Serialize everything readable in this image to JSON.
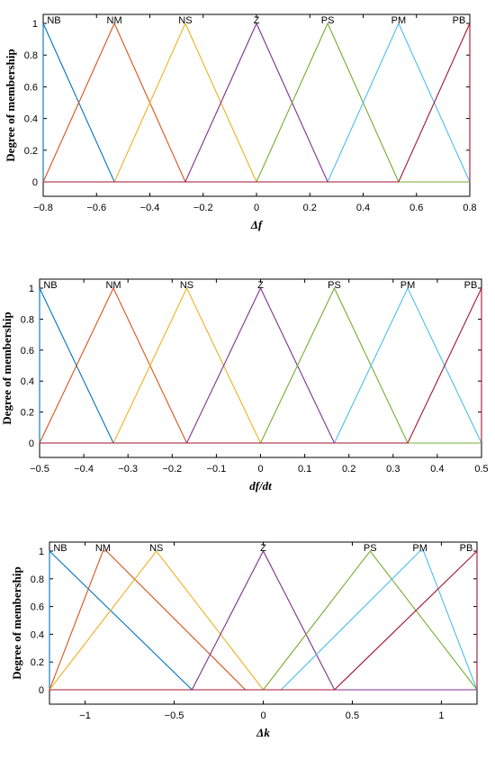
{
  "chart_data": [
    {
      "type": "line",
      "xlabel": "Δf",
      "ylabel": "Degree of membership",
      "xlim": [
        -0.8,
        0.8
      ],
      "ylim": [
        0,
        1
      ],
      "xticks": [
        -0.8,
        -0.6,
        -0.4,
        -0.2,
        0,
        0.2,
        0.4,
        0.6,
        0.8
      ],
      "xtick_labels": [
        "−0.8",
        "−0.6",
        "−0.4",
        "−0.2",
        "0",
        "0.2",
        "0.4",
        "0.6",
        "0.8"
      ],
      "yticks": [
        0,
        0.2,
        0.4,
        0.6,
        0.8,
        1
      ],
      "ytick_labels": [
        "0",
        "0.2",
        "0.4",
        "0.6",
        "0.8",
        "1"
      ],
      "grid": false,
      "series": [
        {
          "name": "NB",
          "color": "#0072BD",
          "x": [
            -0.8,
            -0.8,
            -0.533,
            0.8
          ],
          "y": [
            0,
            1,
            0,
            0
          ]
        },
        {
          "name": "NM",
          "color": "#D95319",
          "x": [
            -0.8,
            -0.533,
            -0.267,
            0.8
          ],
          "y": [
            0,
            1,
            0,
            0
          ]
        },
        {
          "name": "NS",
          "color": "#EDB120",
          "x": [
            -0.8,
            -0.533,
            -0.267,
            0,
            0.8
          ],
          "y": [
            0,
            0,
            1,
            0,
            0
          ]
        },
        {
          "name": "Z",
          "color": "#7E2F8E",
          "x": [
            -0.8,
            -0.267,
            0,
            0.267,
            0.8
          ],
          "y": [
            0,
            0,
            1,
            0,
            0
          ]
        },
        {
          "name": "PS",
          "color": "#77AC30",
          "x": [
            -0.8,
            0,
            0.267,
            0.533,
            0.8
          ],
          "y": [
            0,
            0,
            1,
            0,
            0
          ]
        },
        {
          "name": "PM",
          "color": "#4DBEEE",
          "x": [
            -0.8,
            0.267,
            0.533,
            0.8,
            0.8
          ],
          "y": [
            0,
            0,
            1,
            0,
            0
          ]
        },
        {
          "name": "PB",
          "color": "#A2142F",
          "x": [
            -0.8,
            0.533,
            0.8,
            0.8
          ],
          "y": [
            0,
            0,
            1,
            0
          ]
        }
      ]
    },
    {
      "type": "line",
      "xlabel": "df/dt",
      "ylabel": "Degree of membership",
      "xlim": [
        -0.5,
        0.5
      ],
      "ylim": [
        0,
        1
      ],
      "xticks": [
        -0.5,
        -0.4,
        -0.3,
        -0.2,
        -0.1,
        0,
        0.1,
        0.2,
        0.3,
        0.4,
        0.5
      ],
      "xtick_labels": [
        "−0.5",
        "−0.4",
        "−0.3",
        "−0.2",
        "−0.1",
        "0",
        "0.1",
        "0.2",
        "0.3",
        "0.4",
        "0.5"
      ],
      "yticks": [
        0,
        0.2,
        0.4,
        0.6,
        0.8,
        1
      ],
      "ytick_labels": [
        "0",
        "0.2",
        "0.4",
        "0.6",
        "0.8",
        "1"
      ],
      "grid": false,
      "series": [
        {
          "name": "NB",
          "color": "#0072BD",
          "x": [
            -0.5,
            -0.5,
            -0.333,
            0.5
          ],
          "y": [
            0,
            1,
            0,
            0
          ]
        },
        {
          "name": "NM",
          "color": "#D95319",
          "x": [
            -0.5,
            -0.333,
            -0.167,
            0.5
          ],
          "y": [
            0,
            1,
            0,
            0
          ]
        },
        {
          "name": "NS",
          "color": "#EDB120",
          "x": [
            -0.5,
            -0.333,
            -0.167,
            0,
            0.5
          ],
          "y": [
            0,
            0,
            1,
            0,
            0
          ]
        },
        {
          "name": "Z",
          "color": "#7E2F8E",
          "x": [
            -0.5,
            -0.167,
            0,
            0.167,
            0.5
          ],
          "y": [
            0,
            0,
            1,
            0,
            0
          ]
        },
        {
          "name": "PS",
          "color": "#77AC30",
          "x": [
            -0.5,
            0,
            0.167,
            0.333,
            0.5
          ],
          "y": [
            0,
            0,
            1,
            0,
            0
          ]
        },
        {
          "name": "PM",
          "color": "#4DBEEE",
          "x": [
            -0.5,
            0.167,
            0.333,
            0.5,
            0.5
          ],
          "y": [
            0,
            0,
            1,
            0,
            0
          ]
        },
        {
          "name": "PB",
          "color": "#A2142F",
          "x": [
            -0.5,
            0.333,
            0.5,
            0.5
          ],
          "y": [
            0,
            0,
            1,
            0
          ]
        }
      ]
    },
    {
      "type": "line",
      "xlabel": "Δk",
      "ylabel": "Degree of membership",
      "xlim": [
        -1.2,
        1.2
      ],
      "ylim": [
        0,
        1
      ],
      "xticks": [
        -1,
        -0.5,
        0,
        0.5,
        1
      ],
      "xtick_labels": [
        "−1",
        "−0.5",
        "0",
        "0.5",
        "1"
      ],
      "yticks": [
        0,
        0.2,
        0.4,
        0.6,
        0.8,
        1
      ],
      "ytick_labels": [
        "0",
        "0.2",
        "0.4",
        "0.6",
        "0.8",
        "1"
      ],
      "grid": false,
      "series": [
        {
          "name": "NB",
          "color": "#0072BD",
          "x": [
            -1.2,
            -1.2,
            -0.4,
            1.2
          ],
          "y": [
            0,
            1,
            0,
            0
          ]
        },
        {
          "name": "NM",
          "color": "#D95319",
          "x": [
            -1.2,
            -0.9,
            -0.88,
            -0.1,
            1.2
          ],
          "y": [
            0,
            1,
            1,
            0,
            0
          ]
        },
        {
          "name": "NS",
          "color": "#EDB120",
          "x": [
            -1.2,
            -0.6,
            0,
            1.2
          ],
          "y": [
            0,
            1,
            0,
            0
          ]
        },
        {
          "name": "Z",
          "color": "#7E2F8E",
          "x": [
            -1.2,
            -0.4,
            0,
            0.4,
            1.2
          ],
          "y": [
            0,
            0,
            1,
            0,
            0
          ]
        },
        {
          "name": "PS",
          "color": "#77AC30",
          "x": [
            -1.2,
            0,
            0.6,
            1.2
          ],
          "y": [
            0,
            0,
            1,
            0
          ]
        },
        {
          "name": "PM",
          "color": "#4DBEEE",
          "x": [
            -1.2,
            0.1,
            0.88,
            0.9,
            1.2,
            1.2
          ],
          "y": [
            0,
            0,
            1,
            1,
            0,
            0
          ]
        },
        {
          "name": "PB",
          "color": "#A2142F",
          "x": [
            -1.2,
            0.4,
            1.2,
            1.2
          ],
          "y": [
            0,
            0,
            1,
            0
          ]
        }
      ]
    }
  ]
}
